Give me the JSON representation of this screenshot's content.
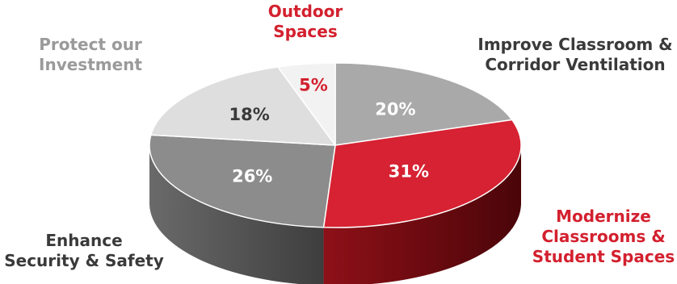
{
  "chart_data": {
    "type": "pie",
    "style": "3d",
    "slices": [
      {
        "label": "Improve Classroom & Corridor Ventilation",
        "value": 20,
        "display": "20%",
        "color": "#a9a9a9",
        "label_color": "#3a3a3a",
        "pct_color": "#ffffff"
      },
      {
        "label": "Modernize Classrooms & Student Spaces",
        "value": 31,
        "display": "31%",
        "color": "#d62232",
        "label_color": "#d3202e",
        "pct_color": "#ffffff"
      },
      {
        "label": "Enhance Security & Safety",
        "value": 26,
        "display": "26%",
        "color": "#8c8c8c",
        "label_color": "#3a3a3a",
        "pct_color": "#ffffff"
      },
      {
        "label": "Protect our Investment",
        "value": 18,
        "display": "18%",
        "color": "#dedede",
        "label_color": "#9a9a9a",
        "pct_color": "#3a3a3a"
      },
      {
        "label": "Outdoor Spaces",
        "value": 5,
        "display": "5%",
        "color": "#f2f2f2",
        "label_color": "#d3202e",
        "pct_color": "#d3202e"
      }
    ]
  }
}
